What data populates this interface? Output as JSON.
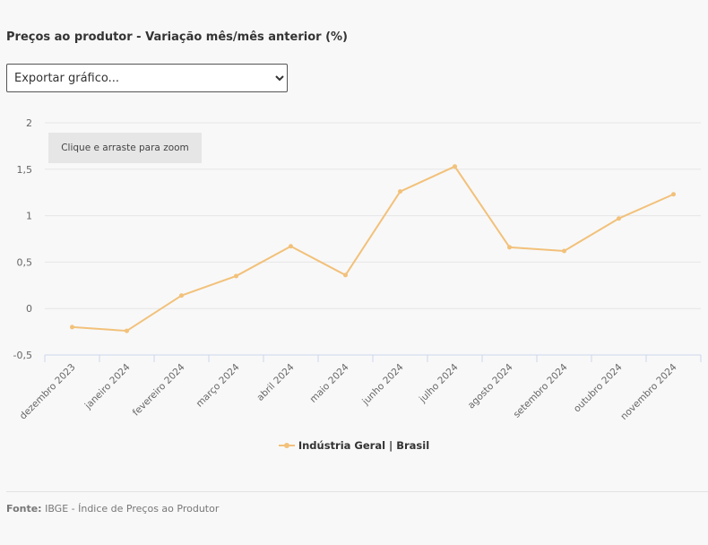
{
  "title": "Preços ao produtor - Variação mês/mês anterior (%)",
  "export_select": {
    "selected": "Exportar gráfico..."
  },
  "zoom_hint": "Clique e arraste para zoom",
  "source": {
    "label": "Fonte:",
    "text": "IBGE - Índice de Preços ao Produtor"
  },
  "colors": {
    "series": "#f2c17a",
    "grid": "#e6e6e6",
    "axis": "#ccd6eb"
  },
  "chart_data": {
    "type": "line",
    "categories": [
      "dezembro 2023",
      "janeiro 2024",
      "fevereiro 2024",
      "março 2024",
      "abril 2024",
      "maio 2024",
      "junho 2024",
      "julho 2024",
      "agosto 2024",
      "setembro 2024",
      "outubro 2024",
      "novembro 2024"
    ],
    "series": [
      {
        "name": "Indústria Geral | Brasil",
        "values": [
          -0.2,
          -0.24,
          0.14,
          0.35,
          0.67,
          0.36,
          1.26,
          1.53,
          0.66,
          0.62,
          0.97,
          1.23
        ]
      }
    ],
    "ylim": [
      -0.5,
      2
    ],
    "yticks": [
      "-0,5",
      "0",
      "0,5",
      "1",
      "1,5",
      "2"
    ],
    "ytick_values": [
      -0.5,
      0,
      0.5,
      1,
      1.5,
      2
    ],
    "grid": true,
    "legend": "bottom-center"
  }
}
